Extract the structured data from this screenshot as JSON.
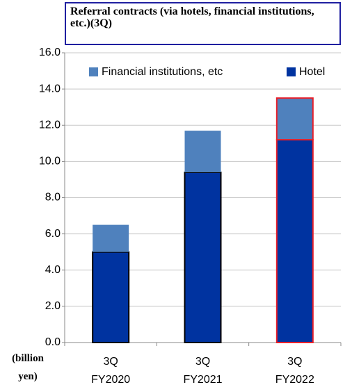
{
  "chart_data": {
    "type": "stacked_bar",
    "title": "Referral contracts (via hotels, financial institutions, etc.)(3Q)",
    "y_label": "(billion yen)",
    "categories": [
      "3Q FY2020",
      "3Q FY2021",
      "3Q FY2022"
    ],
    "series": [
      {
        "name": "Hotel",
        "color": "#0033a0",
        "edgecolors": [
          "#000000",
          "#000000",
          "#e8202a"
        ],
        "values": [
          5.0,
          9.4,
          11.2
        ]
      },
      {
        "name": "Financial institutions, etc",
        "color": "#4f81bd",
        "edgecolors": [
          null,
          null,
          "#e8202a"
        ],
        "values": [
          1.5,
          2.3,
          2.3
        ]
      }
    ],
    "ylim": [
      0,
      16
    ],
    "yticks": [
      {
        "value": 0,
        "label": "0.0"
      },
      {
        "value": 2,
        "label": "2.0"
      },
      {
        "value": 4,
        "label": "4.0"
      },
      {
        "value": 6,
        "label": "6.0"
      },
      {
        "value": 8,
        "label": "8.0"
      },
      {
        "value": 10,
        "label": "10.0"
      },
      {
        "value": 12,
        "label": "12.0"
      },
      {
        "value": 14,
        "label": "14.0"
      },
      {
        "value": 16,
        "label": "16.0"
      }
    ],
    "grid": true
  }
}
